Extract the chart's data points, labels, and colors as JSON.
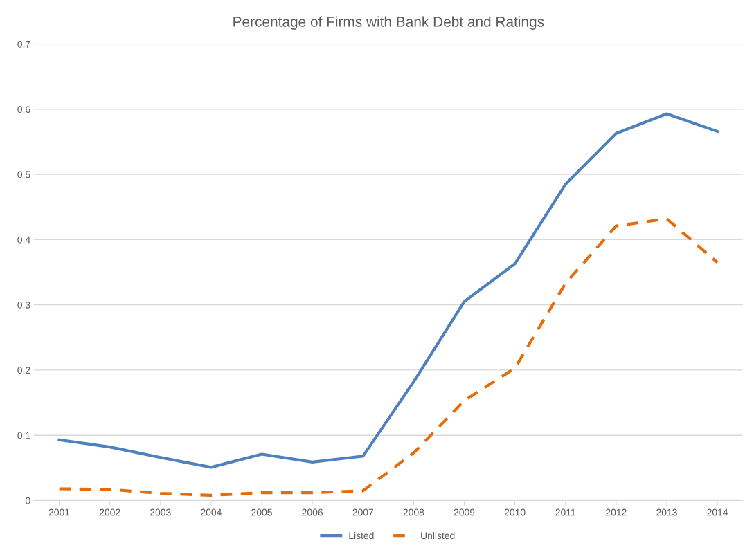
{
  "chart_data": {
    "type": "line",
    "title": "Percentage of Firms with Bank Debt and Ratings",
    "categories": [
      "2001",
      "2002",
      "2003",
      "2004",
      "2005",
      "2006",
      "2007",
      "2008",
      "2009",
      "2010",
      "2011",
      "2012",
      "2013",
      "2014"
    ],
    "series": [
      {
        "name": "Listed",
        "color": "#4f81bd",
        "line_style": "solid",
        "values": [
          0.093,
          0.082,
          0.066,
          0.051,
          0.071,
          0.059,
          0.068,
          0.182,
          0.305,
          0.363,
          0.485,
          0.563,
          0.593,
          0.566
        ]
      },
      {
        "name": "Unlisted",
        "color": "#e46c0a",
        "line_style": "dashed",
        "values": [
          0.018,
          0.017,
          0.011,
          0.008,
          0.012,
          0.012,
          0.015,
          0.073,
          0.153,
          0.203,
          0.333,
          0.421,
          0.432,
          0.365
        ]
      }
    ],
    "ylim": [
      0,
      0.7
    ],
    "yticks": [
      0,
      0.1,
      0.2,
      0.3,
      0.4,
      0.5,
      0.6,
      0.7
    ],
    "grid": "y",
    "legend": "bottom",
    "marker": "none"
  }
}
